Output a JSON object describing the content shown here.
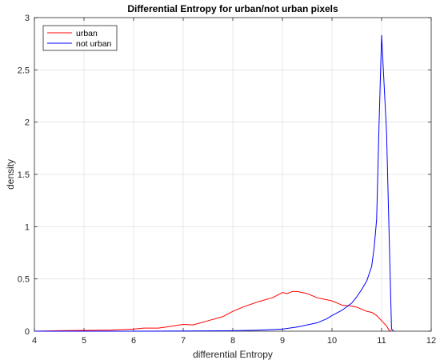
{
  "chart_data": {
    "type": "line",
    "title": "Differential Entropy for urban/not urban pixels",
    "xlabel": "differential Entropy",
    "ylabel": "density",
    "xlim": [
      4,
      12
    ],
    "ylim": [
      0,
      3
    ],
    "xticks": [
      "4",
      "5",
      "6",
      "7",
      "8",
      "9",
      "10",
      "11",
      "12"
    ],
    "yticks": [
      "0",
      "0.5",
      "1",
      "1.5",
      "2",
      "2.5",
      "3"
    ],
    "grid": true,
    "legend_position": "top-left",
    "series": [
      {
        "name": "urban",
        "color": "#ff0000",
        "x": [
          4.0,
          4.5,
          5.0,
          5.5,
          6.0,
          6.2,
          6.5,
          6.8,
          7.0,
          7.2,
          7.5,
          7.8,
          8.0,
          8.2,
          8.5,
          8.8,
          9.0,
          9.1,
          9.2,
          9.3,
          9.4,
          9.5,
          9.6,
          9.7,
          9.8,
          9.9,
          10.0,
          10.1,
          10.2,
          10.3,
          10.4,
          10.5,
          10.6,
          10.7,
          10.8,
          10.9,
          11.0,
          11.1,
          11.15,
          11.2
        ],
        "y": [
          0.0,
          0.005,
          0.008,
          0.01,
          0.02,
          0.03,
          0.03,
          0.05,
          0.065,
          0.06,
          0.1,
          0.14,
          0.19,
          0.23,
          0.28,
          0.32,
          0.37,
          0.36,
          0.38,
          0.38,
          0.37,
          0.36,
          0.34,
          0.32,
          0.31,
          0.3,
          0.29,
          0.27,
          0.25,
          0.245,
          0.24,
          0.23,
          0.21,
          0.19,
          0.18,
          0.15,
          0.1,
          0.05,
          0.01,
          0.0
        ]
      },
      {
        "name": "not urban",
        "color": "#0000ff",
        "x": [
          4.0,
          6.0,
          7.0,
          8.0,
          8.5,
          9.0,
          9.3,
          9.5,
          9.7,
          9.9,
          10.0,
          10.2,
          10.4,
          10.5,
          10.6,
          10.7,
          10.8,
          10.85,
          10.9,
          10.95,
          11.0,
          11.1,
          11.2,
          11.25
        ],
        "y": [
          0.0,
          0.0,
          0.002,
          0.005,
          0.01,
          0.02,
          0.04,
          0.06,
          0.08,
          0.12,
          0.15,
          0.2,
          0.27,
          0.33,
          0.4,
          0.48,
          0.62,
          0.8,
          1.07,
          2.0,
          2.83,
          1.9,
          0.02,
          0.0
        ]
      }
    ]
  }
}
